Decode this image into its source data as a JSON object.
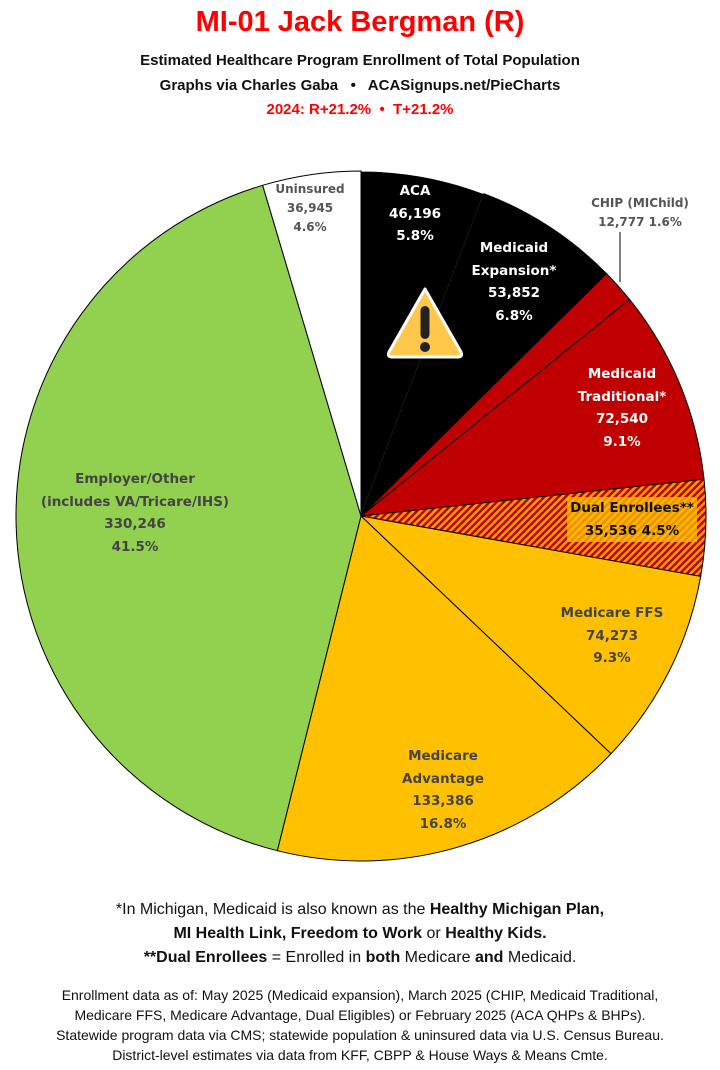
{
  "header": {
    "title": "MI-01 Jack Bergman (R)",
    "subtitle": "Estimated Healthcare Program Enrollment of Total Population",
    "credit": "Graphs via Charles Gaba   •   ACASignups.net/PieCharts",
    "election": "2024: R+21.2%  •  T+21.2%"
  },
  "chart_data": {
    "type": "pie",
    "start": "12 o'clock, clockwise",
    "slices": [
      {
        "label": "ACA",
        "value": 46196,
        "pct_label": "5.8%",
        "percent": 5.8,
        "color": "#000000"
      },
      {
        "label": "Medicaid Expansion*",
        "value": 53852,
        "pct_label": "6.8%",
        "percent": 6.8,
        "color": "#000000"
      },
      {
        "label": "CHIP (MIChild)",
        "value": 12777,
        "pct_label": "1.6%",
        "percent": 1.6,
        "color": "#c00000"
      },
      {
        "label": "Medicaid Traditional*",
        "value": 72540,
        "pct_label": "9.1%",
        "percent": 9.1,
        "color": "#c00000"
      },
      {
        "label": "Dual Enrollees**",
        "value": 35536,
        "pct_label": "4.5%",
        "percent": 4.5,
        "color": "#c00000",
        "pattern": "hatched red/orange"
      },
      {
        "label": "Medicare FFS",
        "value": 74273,
        "pct_label": "9.3%",
        "percent": 9.3,
        "color": "#ffc000"
      },
      {
        "label": "Medicare Advantage",
        "value": 133386,
        "pct_label": "16.8%",
        "percent": 16.8,
        "color": "#ffc000"
      },
      {
        "label": "Employer/Other (includes VA/Tricare/IHS)",
        "value": 330246,
        "pct_label": "41.5%",
        "percent": 41.5,
        "color": "#92d050"
      },
      {
        "label": "Uninsured",
        "value": 36945,
        "pct_label": "4.6%",
        "percent": 4.6,
        "color": "#ffffff"
      }
    ],
    "labels": {
      "aca": [
        "ACA",
        "46,196",
        "5.8%"
      ],
      "exp": [
        "Medicaid",
        "Expansion*",
        "53,852",
        "6.8%"
      ],
      "chip": [
        "CHIP (MIChild)",
        "12,777 1.6%"
      ],
      "trad": [
        "Medicaid",
        "Traditional*",
        "72,540",
        "9.1%"
      ],
      "dual": [
        "Dual Enrollees**",
        "35,536 4.5%"
      ],
      "ffs": [
        "Medicare FFS",
        "74,273",
        "9.3%"
      ],
      "ma": [
        "Medicare",
        "Advantage",
        "133,386",
        "16.8%"
      ],
      "emp": [
        "Employer/Other",
        "(includes VA/Tricare/IHS)",
        "330,246",
        "41.5%"
      ],
      "unins": [
        "Uninsured",
        "36,945",
        "4.6%"
      ]
    },
    "icon": "warning-triangle-icon"
  },
  "notes": {
    "l1a": "*In Michigan, Medicaid is also known as the ",
    "l1b": "Healthy Michigan Plan,",
    "l2a": "MI Health Link, Freedom to Work",
    "l2b": " or ",
    "l2c": "Healthy Kids.",
    "l3a": "**Dual Enrollees",
    "l3b": " = Enrolled in ",
    "l3c": "both",
    "l3d": " Medicare ",
    "l3e": "and",
    "l3f": " Medicaid."
  },
  "sources": [
    "Enrollment data as of: May 2025 (Medicaid expansion), March 2025 (CHIP, Medicaid Traditional,",
    "Medicare FFS, Medicare Advantage, Dual Eligibles) or February 2025 (ACA QHPs & BHPs).",
    "Statewide program data via CMS; statewide population & uninsured data via U.S. Census Bureau.",
    "District-level estimates via data from KFF, CBPP & House Ways & Means Cmte."
  ]
}
